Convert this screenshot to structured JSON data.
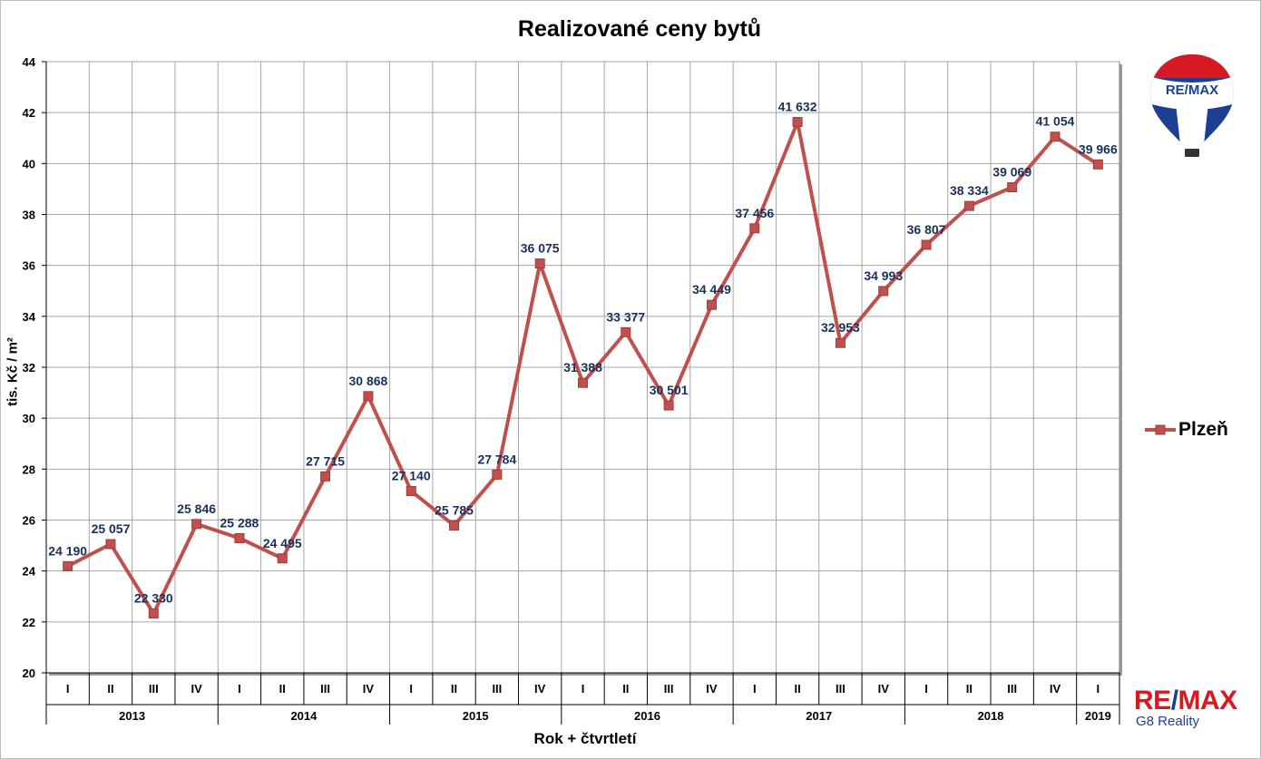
{
  "chart_data": {
    "type": "line",
    "title": "Realizované ceny bytů",
    "ylabel": "tis. Kč / m²",
    "xlabel": "Rok + čtvrtletí",
    "ylim": [
      20,
      44
    ],
    "yticks": [
      "20",
      "22",
      "24",
      "26",
      "28",
      "30",
      "32",
      "34",
      "36",
      "38",
      "40",
      "42",
      "44"
    ],
    "grid": true,
    "legend_position": "right",
    "quarters": [
      "I",
      "II",
      "III",
      "IV",
      "I",
      "II",
      "III",
      "IV",
      "I",
      "II",
      "III",
      "IV",
      "I",
      "II",
      "III",
      "IV",
      "I",
      "II",
      "III",
      "IV",
      "I",
      "II",
      "III",
      "IV",
      "I"
    ],
    "years": [
      {
        "label": "2013",
        "count": 4
      },
      {
        "label": "2014",
        "count": 4
      },
      {
        "label": "2015",
        "count": 4
      },
      {
        "label": "2016",
        "count": 4
      },
      {
        "label": "2017",
        "count": 4
      },
      {
        "label": "2018",
        "count": 4
      },
      {
        "label": "2019",
        "count": 1
      }
    ],
    "series": [
      {
        "name": "Plzeň",
        "color": "#c0504d",
        "values": [
          24.19,
          25.057,
          22.33,
          25.846,
          25.288,
          24.495,
          27.715,
          30.868,
          27.14,
          25.785,
          27.784,
          36.075,
          31.388,
          33.377,
          30.501,
          34.449,
          37.456,
          41.632,
          32.953,
          34.993,
          36.807,
          38.334,
          39.069,
          41.054,
          39.966
        ],
        "labels": [
          "24 190",
          "25 057",
          "22 330",
          "25 846",
          "25 288",
          "24 495",
          "27 715",
          "30 868",
          "27 140",
          "25 785",
          "27 784",
          "36 075",
          "31 388",
          "33 377",
          "30 501",
          "34 449",
          "37 456",
          "41 632",
          "32 953",
          "34 993",
          "36 807",
          "38 334",
          "39 069",
          "41 054",
          "39 966"
        ]
      }
    ]
  },
  "logo": {
    "balloon_text": "RE/MAX",
    "brand_r": "RE",
    "brand_slash": "/",
    "brand_max": "MAX",
    "brand_sub": "G8 Reality",
    "colors": {
      "red": "#d71921",
      "blue": "#1c3f94"
    }
  }
}
